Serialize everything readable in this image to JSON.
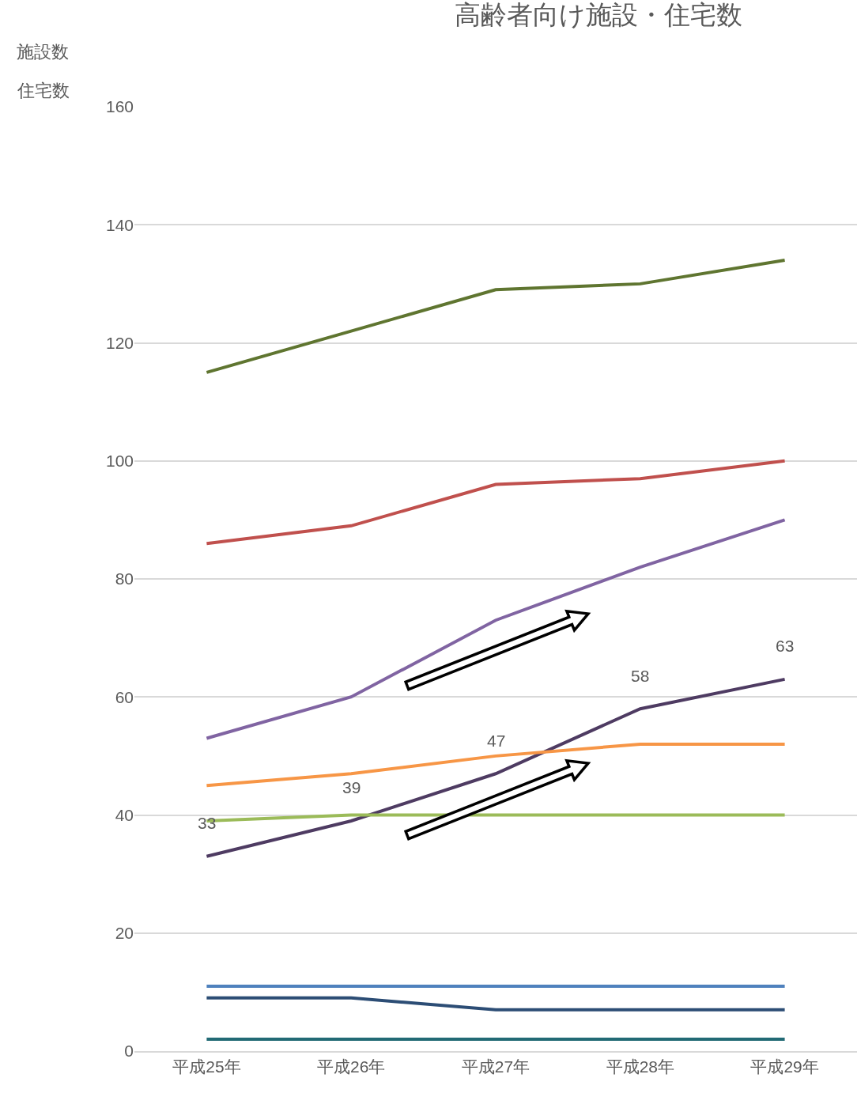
{
  "chart_data": {
    "type": "line",
    "title": "高齢者向け施設・住宅数",
    "ylabel": "施設数",
    "annotations": [
      "住宅数"
    ],
    "categories": [
      "平成25年",
      "平成26年",
      "平成27年",
      "平成28年",
      "平成29年"
    ],
    "series": [
      {
        "color": "#5f7530",
        "values": [
          115,
          122,
          129,
          130,
          134
        ]
      },
      {
        "color": "#c0504d",
        "values": [
          86,
          89,
          96,
          97,
          100
        ]
      },
      {
        "color": "#8064a2",
        "values": [
          53,
          60,
          73,
          82,
          90
        ]
      },
      {
        "color": "#4e3b62",
        "values": [
          33,
          39,
          47,
          58,
          63
        ],
        "value_labels": [
          "33",
          "39",
          "47",
          "58",
          "63"
        ]
      },
      {
        "color": "#f79646",
        "values": [
          45,
          47,
          50,
          52,
          52
        ]
      },
      {
        "color": "#9bbb59",
        "values": [
          39,
          40,
          40,
          40,
          40
        ]
      },
      {
        "color": "#4f81bd",
        "values": [
          11,
          11,
          11,
          11,
          11
        ]
      },
      {
        "color": "#2c4d75",
        "values": [
          9,
          9,
          7,
          7,
          7
        ]
      },
      {
        "color": "#226a75",
        "values": [
          2,
          2,
          2,
          2,
          2
        ]
      }
    ],
    "ylim": [
      0,
      160
    ],
    "yticks": [
      0,
      20,
      40,
      60,
      80,
      100,
      120,
      140,
      160
    ],
    "grid": "y",
    "marker": "none",
    "line_style": "solid"
  }
}
